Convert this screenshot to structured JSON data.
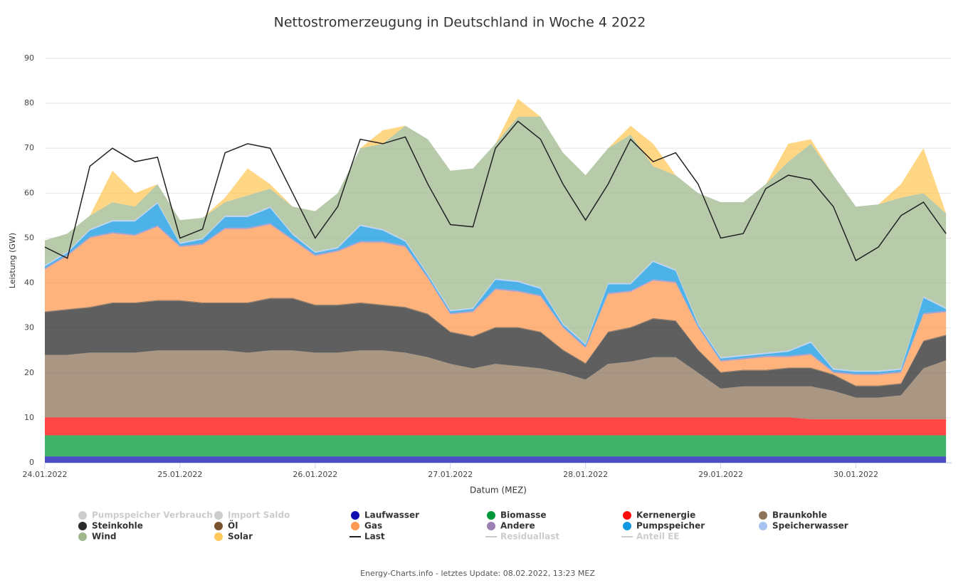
{
  "chart_data": {
    "type": "stacked-area",
    "title": "Nettostromerzeugung in Deutschland in Woche 4 2022",
    "y_label": "Leistung (GW)",
    "x_label": "Datum (MEZ)",
    "footer": "Energy-Charts.info - letztes Update: 08.02.2022, 13:23 MEZ",
    "ylim": [
      0,
      90
    ],
    "yticks": [
      0,
      10,
      20,
      30,
      40,
      50,
      60,
      70,
      80,
      90
    ],
    "xlim": [
      0,
      161
    ],
    "xticks": [
      {
        "value": 0,
        "label": "24.01.2022"
      },
      {
        "value": 24,
        "label": "25.01.2022"
      },
      {
        "value": 48,
        "label": "26.01.2022"
      },
      {
        "value": 72,
        "label": "27.01.2022"
      },
      {
        "value": 96,
        "label": "28.01.2022"
      },
      {
        "value": 120,
        "label": "29.01.2022"
      },
      {
        "value": 144,
        "label": "30.01.2022"
      }
    ],
    "grid": true,
    "x": [
      0,
      4,
      8,
      12,
      16,
      20,
      24,
      28,
      32,
      36,
      40,
      44,
      48,
      52,
      56,
      60,
      64,
      68,
      72,
      76,
      80,
      84,
      88,
      92,
      96,
      100,
      104,
      108,
      112,
      116,
      120,
      124,
      128,
      132,
      136,
      140,
      144,
      148,
      152,
      156,
      160
    ],
    "series": [
      {
        "name": "Pumpspeicher Verbrauch",
        "color": "#cccccc",
        "visible": false
      },
      {
        "name": "Import Saldo",
        "color": "#cccccc",
        "visible": false
      },
      {
        "name": "Laufwasser",
        "color": "#1010b0",
        "values": [
          1.4,
          1.4,
          1.4,
          1.4,
          1.4,
          1.4,
          1.4,
          1.4,
          1.4,
          1.4,
          1.4,
          1.4,
          1.4,
          1.4,
          1.4,
          1.4,
          1.4,
          1.4,
          1.4,
          1.4,
          1.4,
          1.4,
          1.4,
          1.4,
          1.4,
          1.4,
          1.4,
          1.4,
          1.4,
          1.4,
          1.4,
          1.4,
          1.4,
          1.4,
          1.4,
          1.4,
          1.4,
          1.4,
          1.4,
          1.4,
          1.4
        ]
      },
      {
        "name": "Biomasse",
        "color": "#00993a",
        "values": [
          4.7,
          4.7,
          4.7,
          4.7,
          4.7,
          4.7,
          4.7,
          4.7,
          4.7,
          4.7,
          4.7,
          4.7,
          4.7,
          4.7,
          4.7,
          4.7,
          4.7,
          4.7,
          4.7,
          4.7,
          4.7,
          4.7,
          4.7,
          4.7,
          4.7,
          4.7,
          4.7,
          4.7,
          4.7,
          4.7,
          4.7,
          4.7,
          4.7,
          4.7,
          4.7,
          4.7,
          4.7,
          4.7,
          4.7,
          4.7,
          4.7
        ]
      },
      {
        "name": "Kernenergie",
        "color": "#ff0a0a",
        "values": [
          4,
          4,
          4,
          4,
          4,
          4,
          4,
          4,
          4,
          4,
          4,
          4,
          4,
          4,
          4,
          4,
          4,
          4,
          4,
          4,
          4,
          4,
          4,
          4,
          4,
          4,
          4,
          4,
          4,
          4,
          4,
          4,
          4,
          4,
          3.6,
          3.6,
          3.6,
          3.6,
          3.6,
          3.6,
          3.6
        ]
      },
      {
        "name": "Braunkohle",
        "color": "#8c735a",
        "values": [
          13.9,
          13.9,
          14.4,
          14.4,
          14.4,
          14.9,
          14.9,
          14.9,
          14.9,
          14.4,
          14.9,
          14.9,
          14.4,
          14.4,
          14.9,
          14.9,
          14.4,
          13.4,
          11.9,
          10.9,
          11.9,
          11.4,
          10.9,
          9.9,
          8.4,
          11.9,
          12.4,
          13.4,
          13.4,
          9.9,
          6.4,
          6.9,
          6.9,
          6.9,
          7.3,
          6.3,
          4.8,
          4.8,
          5.3,
          11.3,
          13.1
        ]
      },
      {
        "name": "Steinkohle",
        "color": "#2a2a2a",
        "values": [
          9.5,
          10,
          10,
          11,
          11,
          11,
          11,
          10.5,
          10.5,
          11,
          11.5,
          11.5,
          10.5,
          10.5,
          10.5,
          10,
          10,
          9.5,
          7,
          7,
          8,
          8.5,
          8,
          5,
          3.5,
          7,
          7.5,
          8.5,
          8,
          5,
          3.5,
          3.5,
          3.5,
          4,
          4,
          3.5,
          2.5,
          2.5,
          2.5,
          6,
          5.5
        ]
      },
      {
        "name": "Öl",
        "color": "#7a5230",
        "values": [
          0.2,
          0.2,
          0.2,
          0.2,
          0.2,
          0.2,
          0.2,
          0.2,
          0.2,
          0.2,
          0.2,
          0.2,
          0.2,
          0.2,
          0.2,
          0.2,
          0.2,
          0.2,
          0.2,
          0.2,
          0.2,
          0.2,
          0.2,
          0.2,
          0.2,
          0.2,
          0.2,
          0.2,
          0.2,
          0.2,
          0.2,
          0.2,
          0.2,
          0.2,
          0.2,
          0.2,
          0.2,
          0.2,
          0.2,
          0.2,
          0.2
        ]
      },
      {
        "name": "Gas",
        "color": "#ff9a50",
        "values": [
          9.3,
          11.8,
          15.3,
          15.3,
          14.8,
          16.3,
          11.8,
          12.8,
          16.3,
          16.3,
          16.3,
          12.8,
          10.8,
          11.8,
          13.3,
          13.8,
          13.3,
          7.8,
          3.8,
          5.3,
          8.3,
          7.8,
          7.8,
          4.8,
          3.3,
          8.3,
          7.8,
          8.3,
          8.3,
          4.8,
          2.3,
          2.3,
          2.8,
          2.3,
          2.8,
          0.3,
          2.3,
          2.3,
          2.3,
          5.8,
          5.0
        ]
      },
      {
        "name": "Andere",
        "color": "#9b7fb3",
        "values": [
          0.3,
          0.3,
          0.3,
          0.3,
          0.3,
          0.3,
          0.3,
          0.3,
          0.3,
          0.3,
          0.3,
          0.3,
          0.3,
          0.3,
          0.3,
          0.3,
          0.3,
          0.3,
          0.3,
          0.3,
          0.3,
          0.3,
          0.3,
          0.3,
          0.3,
          0.3,
          0.3,
          0.3,
          0.3,
          0.3,
          0.3,
          0.3,
          0.3,
          0.3,
          0.3,
          0.3,
          0.3,
          0.3,
          0.3,
          0.3,
          0.3
        ]
      },
      {
        "name": "Pumpspeicher",
        "color": "#1098e0",
        "values": [
          0.4,
          0.4,
          1.4,
          2.4,
          2.9,
          4.9,
          0.4,
          0.9,
          2.4,
          2.4,
          3.4,
          0.9,
          0.4,
          0.4,
          3.4,
          2.4,
          0.9,
          0.4,
          0.4,
          0.4,
          1.9,
          1.9,
          1.4,
          0.4,
          0.4,
          1.9,
          1.4,
          3.9,
          2.4,
          0.4,
          0.4,
          0.4,
          0.4,
          0.9,
          2.4,
          0.4,
          0.4,
          0.4,
          0.4,
          3.4,
          0.4
        ]
      },
      {
        "name": "Speicherwasser",
        "color": "#a8c4f0",
        "values": [
          0.3,
          0.3,
          0.3,
          0.3,
          0.3,
          0.3,
          0.3,
          0.3,
          0.3,
          0.3,
          0.3,
          0.3,
          0.3,
          0.3,
          0.3,
          0.3,
          0.3,
          0.3,
          0.3,
          0.3,
          0.3,
          0.3,
          0.3,
          0.3,
          0.3,
          0.3,
          0.3,
          0.3,
          0.3,
          0.3,
          0.3,
          0.3,
          0.3,
          0.3,
          0.3,
          0.3,
          0.3,
          0.3,
          0.3,
          0.3,
          0.3
        ]
      },
      {
        "name": "Wind",
        "color": "#9fb98d",
        "values": [
          5.5,
          4,
          3,
          4,
          3,
          4,
          5,
          4.5,
          3,
          4.5,
          4,
          6,
          9,
          12,
          17,
          19,
          25.5,
          30,
          31,
          31,
          30,
          36.5,
          38,
          38,
          37.5,
          30,
          33,
          21,
          21,
          29,
          34.5,
          34,
          37.5,
          42,
          44,
          43,
          36.5,
          37,
          38,
          23,
          21
        ]
      },
      {
        "name": "Solar",
        "color": "#ffc85a",
        "values": [
          0,
          0,
          0,
          7,
          3,
          0,
          0,
          0,
          1,
          6,
          1,
          0,
          0,
          0,
          0,
          3,
          0,
          0,
          0,
          0,
          0,
          4,
          0,
          0,
          0,
          0,
          2,
          5,
          0,
          0,
          0,
          0,
          0,
          4,
          1,
          0,
          0,
          0,
          3,
          10,
          0
        ]
      },
      {
        "name": "Last",
        "color": "#222222",
        "type": "line",
        "values": [
          48,
          45.5,
          66,
          70,
          67,
          68,
          50,
          52,
          69,
          71,
          70,
          60,
          50,
          57,
          72,
          71,
          72.5,
          62,
          53,
          52.5,
          70,
          76,
          72,
          62,
          54,
          62,
          72,
          67,
          69,
          62,
          50,
          51,
          61,
          64,
          63,
          57,
          45,
          48,
          55,
          58,
          51
        ]
      },
      {
        "name": "Residuallast",
        "color": "#cccccc",
        "type": "line",
        "visible": false
      },
      {
        "name": "Anteil EE",
        "color": "#cccccc",
        "type": "line",
        "visible": false
      }
    ]
  }
}
